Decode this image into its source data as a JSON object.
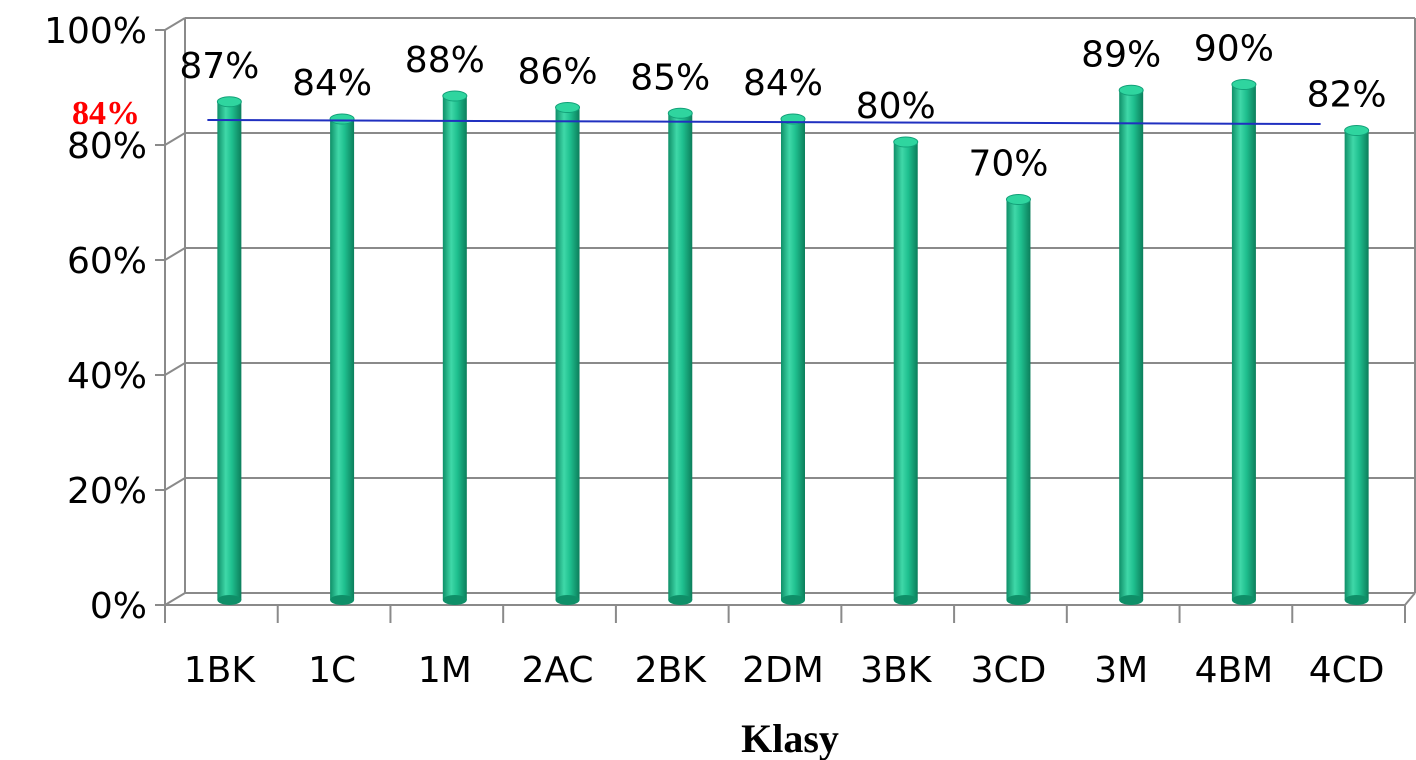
{
  "chart_data": {
    "type": "bar",
    "categories": [
      "1BK",
      "1C",
      "1M",
      "2AC",
      "2BK",
      "2DM",
      "3BK",
      "3CD",
      "3M",
      "4BM",
      "4CD"
    ],
    "values": [
      87,
      84,
      88,
      86,
      85,
      84,
      80,
      70,
      89,
      90,
      82
    ],
    "data_labels": [
      "87%",
      "84%",
      "88%",
      "86%",
      "85%",
      "84%",
      "80%",
      "70%",
      "89%",
      "90%",
      "82%"
    ],
    "xlabel": "Klasy",
    "ylabel": "",
    "ylim": [
      0,
      100
    ],
    "y_ticks": [
      0,
      20,
      40,
      60,
      80,
      100
    ],
    "y_tick_labels": [
      "0%",
      "20%",
      "40%",
      "60%",
      "80%",
      "100%"
    ],
    "grid": true,
    "average_line": {
      "value": 84,
      "label": "84%",
      "color": "#2030c0",
      "label_color": "#ff0000"
    },
    "bar_color": "#1fb98a"
  }
}
